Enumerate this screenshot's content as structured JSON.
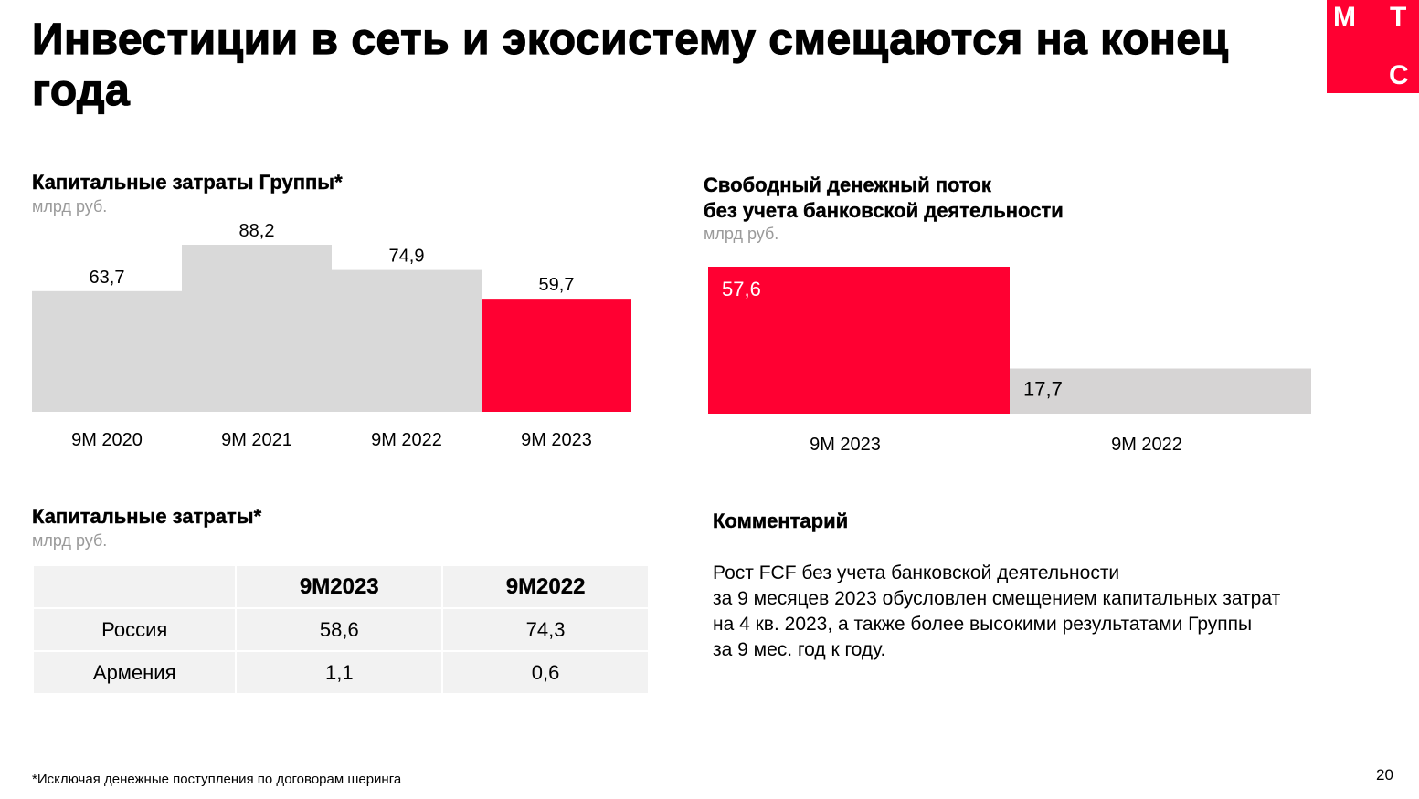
{
  "title": "Инвестиции в сеть и экосистему смещаются на конец года",
  "logo": {
    "letters": [
      "М",
      "Т",
      "С"
    ],
    "color": "#ff0032"
  },
  "capex_chart": {
    "heading": "Капитальные затраты Группы*",
    "unit": "млрд руб."
  },
  "fcf_chart": {
    "heading_line1": "Свободный денежный поток",
    "heading_line2": "без учета банковской деятельности",
    "unit": "млрд руб."
  },
  "chart_data": [
    {
      "type": "bar",
      "title": "Капитальные затраты Группы*",
      "ylabel": "млрд руб.",
      "categories": [
        "9M 2020",
        "9M 2021",
        "9M 2022",
        "9M 2023"
      ],
      "values": [
        63.7,
        88.2,
        74.9,
        59.7
      ],
      "value_labels": [
        "63,7",
        "88,2",
        "74,9",
        "59,7"
      ],
      "colors": [
        "#d9d9d9",
        "#d9d9d9",
        "#d9d9d9",
        "#ff0032"
      ],
      "ylim": [
        0,
        100
      ]
    },
    {
      "type": "bar",
      "title": "Свободный денежный поток без учета банковской деятельности",
      "ylabel": "млрд руб.",
      "categories": [
        "9M 2023",
        "9M 2022"
      ],
      "values": [
        57.6,
        17.7
      ],
      "value_labels": [
        "57,6",
        "17,7"
      ],
      "colors": [
        "#ff0032",
        "#d6d4d4"
      ],
      "ylim": [
        0,
        60
      ]
    }
  ],
  "capex_table": {
    "heading": "Капитальные затраты*",
    "unit": "млрд руб.",
    "columns": [
      "",
      "9М2023",
      "9М2022"
    ],
    "rows": [
      [
        "Россия",
        "58,6",
        "74,3"
      ],
      [
        "Армения",
        "1,1",
        "0,6"
      ]
    ]
  },
  "comment": {
    "heading": "Комментарий",
    "lines": [
      "Рост FCF без учета банковской деятельности",
      "за 9 месяцев 2023 обусловлен смещением капитальных затрат",
      "на 4 кв. 2023, а также более высокими результатами Группы",
      "за 9 мес. год к году."
    ]
  },
  "footnote": "*Исключая денежные поступления по договорам шеринга",
  "page_number": "20"
}
